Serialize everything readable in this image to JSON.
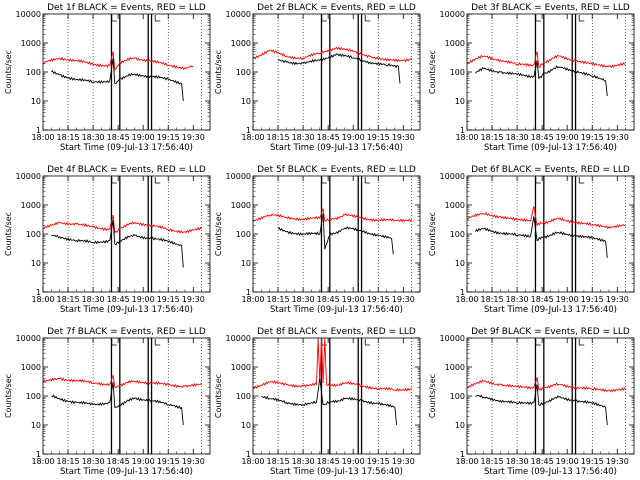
{
  "chart_data": [
    {
      "type": "line",
      "title": "Det 1f BLACK = Events, RED = LLD",
      "xlabel": "Start Time (09-Jul-13 17:56:40)",
      "ylabel": "Counts/sec",
      "yscale": "log",
      "ylim": [
        1,
        10000
      ],
      "xlim": [
        "18:00",
        "19:40"
      ],
      "x_ticks": [
        "18:00",
        "18:15",
        "18:30",
        "18:45",
        "19:00",
        "19:15",
        "19:30"
      ],
      "y_ticks": [
        "1",
        "10",
        "100",
        "1000",
        "10000"
      ],
      "grid": "dotted vertical",
      "series": [
        {
          "name": "LLD",
          "color": "#ff0000",
          "x": [
            "18:00",
            "18:10",
            "18:20",
            "18:30",
            "18:40",
            "18:42",
            "18:43",
            "18:46",
            "18:55",
            "19:05",
            "19:15",
            "19:25",
            "19:30"
          ],
          "values": [
            200,
            300,
            250,
            180,
            170,
            500,
            120,
            220,
            300,
            240,
            170,
            140,
            160
          ]
        },
        {
          "name": "Events",
          "color": "#000000",
          "x": [
            "18:05",
            "18:10",
            "18:20",
            "18:30",
            "18:40",
            "18:42",
            "18:43",
            "18:46",
            "18:55",
            "19:05",
            "19:15",
            "19:23",
            "19:24"
          ],
          "values": [
            100,
            80,
            55,
            45,
            50,
            300,
            40,
            60,
            85,
            70,
            55,
            40,
            10
          ]
        }
      ]
    },
    {
      "type": "line",
      "title": "Det 2f BLACK = Events, RED = LLD",
      "xlabel": "Start Time (09-Jul-13 17:56:40)",
      "ylabel": "Counts/sec",
      "yscale": "log",
      "ylim": [
        1,
        10000
      ],
      "xlim": [
        "18:00",
        "19:40"
      ],
      "x_ticks": [
        "18:00",
        "18:15",
        "18:30",
        "18:45",
        "19:00",
        "19:15",
        "19:30"
      ],
      "y_ticks": [
        "1",
        "10",
        "100",
        "1000",
        "10000"
      ],
      "grid": "dotted vertical",
      "series": [
        {
          "name": "LLD",
          "color": "#ff0000",
          "x": [
            "18:00",
            "18:10",
            "18:20",
            "18:30",
            "18:40",
            "18:50",
            "19:00",
            "19:10",
            "19:20",
            "19:30",
            "19:35"
          ],
          "values": [
            300,
            550,
            350,
            300,
            450,
            700,
            500,
            350,
            250,
            250,
            300
          ]
        },
        {
          "name": "Events",
          "color": "#000000",
          "x": [
            "18:15",
            "18:20",
            "18:30",
            "18:40",
            "18:50",
            "19:00",
            "19:10",
            "19:20",
            "19:27",
            "19:28"
          ],
          "values": [
            250,
            220,
            200,
            250,
            420,
            300,
            220,
            170,
            160,
            40
          ]
        }
      ]
    },
    {
      "type": "line",
      "title": "Det 3f BLACK = Events, RED = LLD",
      "xlabel": "Start Time (09-Jul-13 17:56:40)",
      "ylabel": "Counts/sec",
      "yscale": "log",
      "ylim": [
        1,
        10000
      ],
      "xlim": [
        "18:00",
        "19:40"
      ],
      "x_ticks": [
        "18:00",
        "18:15",
        "18:30",
        "18:45",
        "19:00",
        "19:15",
        "19:30"
      ],
      "y_ticks": [
        "1",
        "10",
        "100",
        "1000",
        "10000"
      ],
      "grid": "dotted vertical",
      "series": [
        {
          "name": "LLD",
          "color": "#ff0000",
          "x": [
            "18:00",
            "18:10",
            "18:20",
            "18:30",
            "18:40",
            "18:42",
            "18:43",
            "18:46",
            "18:55",
            "19:05",
            "19:15",
            "19:25",
            "19:35"
          ],
          "values": [
            200,
            350,
            260,
            180,
            180,
            500,
            150,
            220,
            350,
            250,
            180,
            160,
            190
          ]
        },
        {
          "name": "Events",
          "color": "#000000",
          "x": [
            "18:05",
            "18:10",
            "18:20",
            "18:30",
            "18:40",
            "18:42",
            "18:43",
            "18:46",
            "18:55",
            "19:05",
            "19:15",
            "19:23",
            "19:24"
          ],
          "values": [
            90,
            130,
            100,
            80,
            70,
            250,
            60,
            90,
            150,
            110,
            70,
            50,
            15
          ]
        }
      ]
    },
    {
      "type": "line",
      "title": "Det 4f BLACK = Events, RED = LLD",
      "xlabel": "Start Time (09-Jul-13 17:56:40)",
      "ylabel": "Counts/sec",
      "yscale": "log",
      "ylim": [
        1,
        10000
      ],
      "xlim": [
        "18:00",
        "19:40"
      ],
      "x_ticks": [
        "18:00",
        "18:15",
        "18:30",
        "18:45",
        "19:00",
        "19:15",
        "19:30"
      ],
      "y_ticks": [
        "1",
        "10",
        "100",
        "1000",
        "10000"
      ],
      "grid": "dotted vertical",
      "series": [
        {
          "name": "LLD",
          "color": "#ff0000",
          "x": [
            "18:00",
            "18:10",
            "18:20",
            "18:30",
            "18:40",
            "18:42",
            "18:43",
            "18:46",
            "18:55",
            "19:05",
            "19:15",
            "19:25",
            "19:35"
          ],
          "values": [
            150,
            250,
            220,
            170,
            150,
            450,
            110,
            160,
            250,
            200,
            140,
            120,
            150
          ]
        },
        {
          "name": "Events",
          "color": "#000000",
          "x": [
            "18:05",
            "18:10",
            "18:20",
            "18:30",
            "18:40",
            "18:42",
            "18:43",
            "18:46",
            "18:55",
            "19:05",
            "19:15",
            "19:23",
            "19:24"
          ],
          "values": [
            90,
            80,
            60,
            50,
            60,
            300,
            45,
            60,
            90,
            70,
            55,
            40,
            7
          ]
        }
      ]
    },
    {
      "type": "line",
      "title": "Det 5f BLACK = Events, RED = LLD",
      "xlabel": "Start Time (09-Jul-13 17:56:40)",
      "ylabel": "Counts/sec",
      "yscale": "log",
      "ylim": [
        1,
        10000
      ],
      "xlim": [
        "18:00",
        "19:40"
      ],
      "x_ticks": [
        "18:00",
        "18:15",
        "18:30",
        "18:45",
        "19:00",
        "19:15",
        "19:30"
      ],
      "y_ticks": [
        "1",
        "10",
        "100",
        "1000",
        "10000"
      ],
      "grid": "dotted vertical",
      "series": [
        {
          "name": "LLD",
          "color": "#ff0000",
          "x": [
            "18:00",
            "18:10",
            "18:20",
            "18:30",
            "18:40",
            "18:42",
            "18:43",
            "18:46",
            "18:55",
            "19:05",
            "19:15",
            "19:25",
            "19:35"
          ],
          "values": [
            300,
            450,
            380,
            320,
            350,
            750,
            280,
            300,
            450,
            360,
            300,
            290,
            320
          ]
        },
        {
          "name": "Events",
          "color": "#000000",
          "x": [
            "18:15",
            "18:20",
            "18:30",
            "18:40",
            "18:42",
            "18:43",
            "18:46",
            "18:55",
            "19:05",
            "19:15",
            "19:23",
            "19:24"
          ],
          "values": [
            150,
            120,
            100,
            100,
            500,
            30,
            90,
            160,
            130,
            90,
            70,
            20
          ]
        }
      ]
    },
    {
      "type": "line",
      "title": "Det 6f BLACK = Events, RED = LLD",
      "xlabel": "Start Time (09-Jul-13 17:56:40)",
      "ylabel": "Counts/sec",
      "yscale": "log",
      "ylim": [
        1,
        10000
      ],
      "xlim": [
        "18:00",
        "19:40"
      ],
      "x_ticks": [
        "18:00",
        "18:15",
        "18:30",
        "18:45",
        "19:00",
        "19:15",
        "19:30"
      ],
      "y_ticks": [
        "1",
        "10",
        "100",
        "1000",
        "10000"
      ],
      "grid": "dotted vertical",
      "series": [
        {
          "name": "LLD",
          "color": "#ff0000",
          "x": [
            "18:00",
            "18:10",
            "18:20",
            "18:30",
            "18:38",
            "18:40",
            "18:42",
            "18:46",
            "18:55",
            "19:05",
            "19:15",
            "19:25",
            "19:35"
          ],
          "values": [
            350,
            500,
            400,
            300,
            280,
            900,
            200,
            250,
            330,
            260,
            200,
            180,
            200
          ]
        },
        {
          "name": "Events",
          "color": "#000000",
          "x": [
            "18:05",
            "18:10",
            "18:20",
            "18:30",
            "18:38",
            "18:40",
            "18:42",
            "18:46",
            "18:55",
            "19:05",
            "19:15",
            "19:23",
            "19:24"
          ],
          "values": [
            120,
            150,
            110,
            90,
            80,
            400,
            60,
            80,
            110,
            90,
            70,
            55,
            15
          ]
        }
      ]
    },
    {
      "type": "line",
      "title": "Det 7f BLACK = Events, RED = LLD",
      "xlabel": "Start Time (09-Jul-13 17:56:40)",
      "ylabel": "Counts/sec",
      "yscale": "log",
      "ylim": [
        1,
        10000
      ],
      "xlim": [
        "18:00",
        "19:40"
      ],
      "x_ticks": [
        "18:00",
        "18:15",
        "18:30",
        "18:45",
        "19:00",
        "19:15",
        "19:30"
      ],
      "y_ticks": [
        "1",
        "10",
        "100",
        "1000",
        "10000"
      ],
      "grid": "dotted vertical",
      "series": [
        {
          "name": "LLD",
          "color": "#ff0000",
          "x": [
            "18:00",
            "18:10",
            "18:20",
            "18:30",
            "18:40",
            "18:42",
            "18:43",
            "18:46",
            "18:55",
            "19:05",
            "19:15",
            "19:25",
            "19:35"
          ],
          "values": [
            300,
            400,
            340,
            280,
            260,
            500,
            200,
            240,
            330,
            280,
            240,
            220,
            240
          ]
        },
        {
          "name": "Events",
          "color": "#000000",
          "x": [
            "18:05",
            "18:10",
            "18:20",
            "18:30",
            "18:40",
            "18:42",
            "18:43",
            "18:46",
            "18:55",
            "19:05",
            "19:15",
            "19:23",
            "19:24"
          ],
          "values": [
            100,
            80,
            60,
            50,
            60,
            300,
            40,
            50,
            85,
            70,
            50,
            40,
            10
          ]
        }
      ]
    },
    {
      "type": "line",
      "title": "Det 8f BLACK = Events, RED = LLD",
      "xlabel": "Start Time (09-Jul-13 17:56:40)",
      "ylabel": "Counts/sec",
      "yscale": "log",
      "ylim": [
        1,
        10000
      ],
      "xlim": [
        "18:00",
        "19:40"
      ],
      "x_ticks": [
        "18:00",
        "18:15",
        "18:30",
        "18:45",
        "19:00",
        "19:15",
        "19:30"
      ],
      "y_ticks": [
        "1",
        "10",
        "100",
        "1000",
        "10000"
      ],
      "grid": "dotted vertical",
      "series": [
        {
          "name": "LLD",
          "color": "#ff0000",
          "x": [
            "18:00",
            "18:10",
            "18:20",
            "18:30",
            "18:38",
            "18:39",
            "18:40",
            "18:41",
            "18:42",
            "18:43",
            "18:44",
            "18:46",
            "18:55",
            "19:05",
            "19:15",
            "19:25",
            "19:35"
          ],
          "values": [
            200,
            300,
            250,
            220,
            250,
            10000,
            300,
            10000,
            280,
            10000,
            250,
            220,
            280,
            230,
            180,
            160,
            180
          ]
        },
        {
          "name": "Events",
          "color": "#000000",
          "x": [
            "18:05",
            "18:10",
            "18:20",
            "18:30",
            "18:38",
            "18:40",
            "18:42",
            "18:46",
            "18:55",
            "19:05",
            "19:15",
            "19:25",
            "19:26"
          ],
          "values": [
            100,
            80,
            60,
            50,
            60,
            400,
            50,
            60,
            80,
            70,
            55,
            40,
            10
          ]
        }
      ]
    },
    {
      "type": "line",
      "title": "Det 9f BLACK = Events, RED = LLD",
      "xlabel": "Start Time (09-Jul-13 17:56:40)",
      "ylabel": "Counts/sec",
      "yscale": "log",
      "ylim": [
        1,
        10000
      ],
      "xlim": [
        "18:00",
        "19:40"
      ],
      "x_ticks": [
        "18:00",
        "18:15",
        "18:30",
        "18:45",
        "19:00",
        "19:15",
        "19:30"
      ],
      "y_ticks": [
        "1",
        "10",
        "100",
        "1000",
        "10000"
      ],
      "grid": "dotted vertical",
      "series": [
        {
          "name": "LLD",
          "color": "#ff0000",
          "x": [
            "18:00",
            "18:10",
            "18:20",
            "18:30",
            "18:40",
            "18:42",
            "18:43",
            "18:46",
            "18:55",
            "19:05",
            "19:15",
            "19:25",
            "19:35"
          ],
          "values": [
            200,
            320,
            250,
            200,
            200,
            450,
            160,
            200,
            250,
            200,
            170,
            160,
            170
          ]
        },
        {
          "name": "Events",
          "color": "#000000",
          "x": [
            "18:05",
            "18:10",
            "18:20",
            "18:30",
            "18:40",
            "18:42",
            "18:43",
            "18:46",
            "18:55",
            "19:05",
            "19:15",
            "19:23",
            "19:24"
          ],
          "values": [
            100,
            90,
            70,
            55,
            60,
            250,
            50,
            60,
            90,
            70,
            55,
            40,
            10
          ]
        }
      ]
    }
  ],
  "markers": {
    "vertical_solid_lines": [
      "18:41",
      "18:46",
      "19:03",
      "19:05"
    ],
    "vertical_dotted_lines": [
      "18:15",
      "18:30",
      "19:15",
      "19:35"
    ],
    "L_bracket": [
      "18:40",
      "19:06"
    ]
  }
}
